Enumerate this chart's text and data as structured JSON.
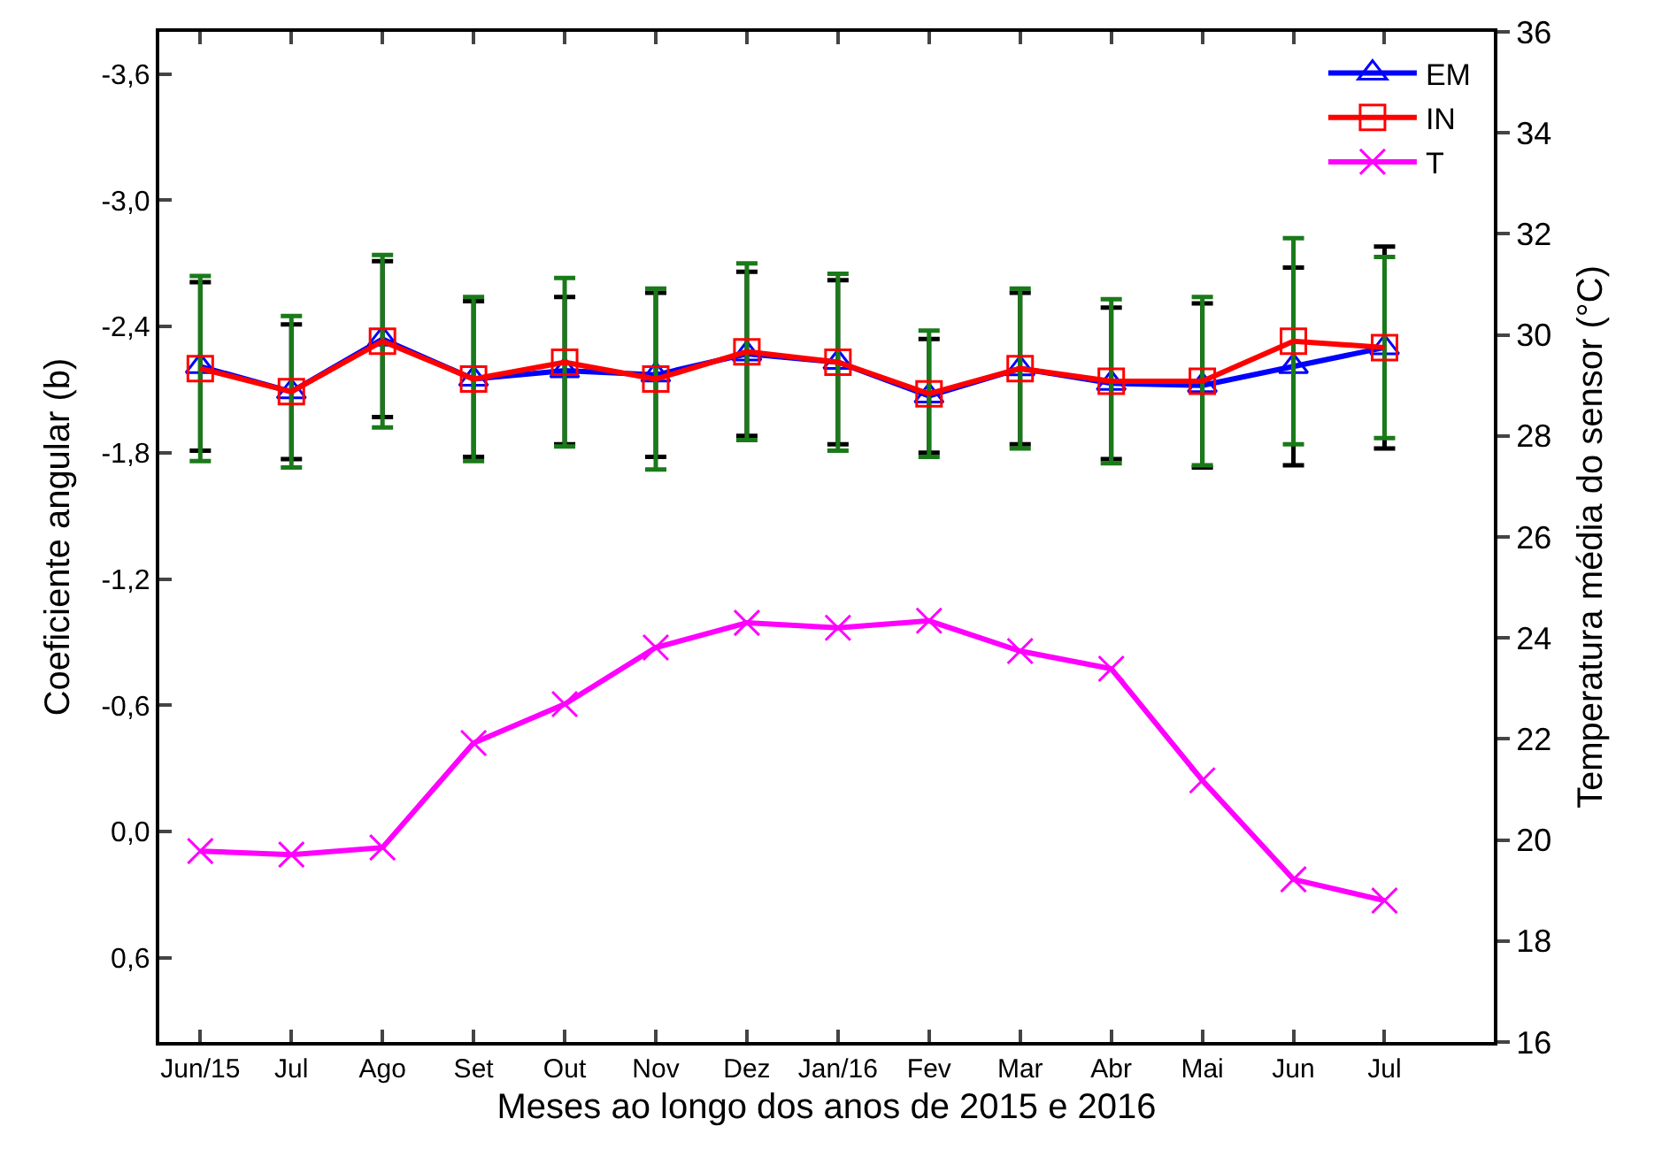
{
  "chart_data": {
    "type": "line",
    "xlabel": "Meses ao longo dos anos de 2015 e 2016",
    "ylabel": "Coeficiente angular (b)",
    "y2label": "Temperatura média do sensor (°C)",
    "categories": [
      "Jun/15",
      "Jul",
      "Ago",
      "Set",
      "Out",
      "Nov",
      "Dez",
      "Jan/16",
      "Fev",
      "Mar",
      "Abr",
      "Mai",
      "Jun",
      "Jul"
    ],
    "series": [
      {
        "name": "EM",
        "color": "#0000ff",
        "marker": "triangle",
        "values": [
          -2.21,
          -2.09,
          -2.34,
          -2.15,
          -2.19,
          -2.17,
          -2.27,
          -2.23,
          -2.07,
          -2.2,
          -2.13,
          -2.12,
          -2.21,
          -2.3
        ],
        "errors": [
          0.4,
          0.32,
          0.37,
          0.37,
          0.35,
          0.39,
          0.39,
          0.39,
          0.27,
          0.36,
          0.36,
          0.39,
          0.47,
          0.48
        ]
      },
      {
        "name": "IN",
        "color": "#ff0000",
        "marker": "square",
        "values": [
          -2.2,
          -2.09,
          -2.33,
          -2.15,
          -2.23,
          -2.15,
          -2.28,
          -2.23,
          -2.08,
          -2.2,
          -2.14,
          -2.14,
          -2.33,
          -2.3
        ],
        "errors": [
          0.44,
          0.36,
          0.41,
          0.39,
          0.4,
          0.43,
          0.42,
          0.42,
          0.3,
          0.38,
          0.39,
          0.4,
          0.49,
          0.43
        ]
      },
      {
        "name": "T",
        "color": "#ff00ff",
        "marker": "cross",
        "axis": "y2",
        "values": [
          19.78,
          19.71,
          19.85,
          21.92,
          22.69,
          23.81,
          24.3,
          24.2,
          24.34,
          23.74,
          23.39,
          21.18,
          19.22,
          18.8
        ]
      }
    ],
    "ylim": [
      1.0,
      -3.8
    ],
    "yticks": [
      {
        "value": -3.6,
        "label": "-3,6"
      },
      {
        "value": -3.0,
        "label": "-3,0"
      },
      {
        "value": -2.4,
        "label": "-2,4"
      },
      {
        "value": -1.8,
        "label": "-1,8"
      },
      {
        "value": -1.2,
        "label": "-1,2"
      },
      {
        "value": -0.6,
        "label": "-0,6"
      },
      {
        "value": 0.0,
        "label": "0,0"
      },
      {
        "value": 0.6,
        "label": "0,6"
      }
    ],
    "y2lim": [
      16,
      36
    ],
    "y2ticks": [
      16,
      18,
      20,
      22,
      24,
      26,
      28,
      30,
      32,
      34,
      36
    ],
    "grid": false,
    "legend": "top right"
  }
}
